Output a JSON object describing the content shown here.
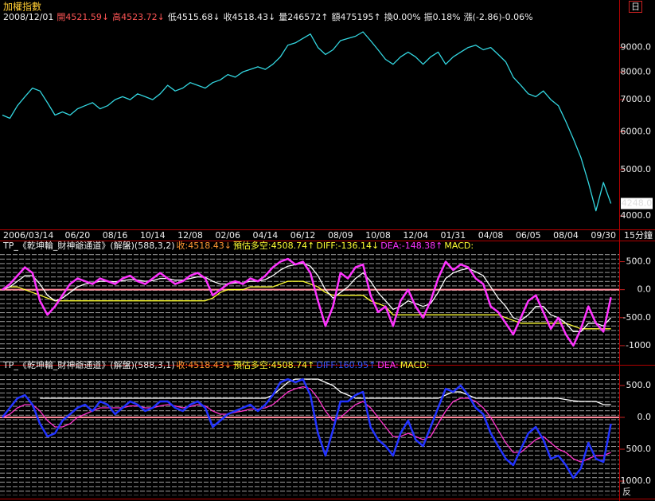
{
  "chart_data": [
    {
      "type": "line",
      "title": "加權指數",
      "info": [
        "2008/12/01",
        "開4521.59↓",
        "高4523.72↓",
        "低4515.68↓",
        "收4518.43↓",
        "量246572↑",
        "額475195↑",
        "換0.00%",
        "振0.18%",
        "漲(-2.86)-0.06%"
      ],
      "corner_label": "日",
      "categories": [
        "2006/03/14",
        null,
        null,
        null,
        null,
        null,
        null,
        null,
        null,
        null,
        "06/20",
        null,
        null,
        null,
        null,
        "08/16",
        null,
        null,
        null,
        null,
        "10/14",
        null,
        null,
        null,
        null,
        "12/08",
        null,
        null,
        null,
        null,
        "02/06",
        null,
        null,
        null,
        null,
        "04/14",
        null,
        null,
        null,
        null,
        "06/12",
        null,
        null,
        null,
        null,
        "08/09",
        null,
        null,
        null,
        null,
        "10/08",
        null,
        null,
        null,
        null,
        "12/04",
        null,
        null,
        null,
        null,
        "01/31",
        null,
        null,
        null,
        null,
        "04/08",
        null,
        null,
        null,
        null,
        "06/05",
        null,
        null,
        null,
        null,
        "08/04",
        null,
        null,
        null,
        null,
        "09/30",
        null
      ],
      "x_unit_label": "15分鐘",
      "values": [
        6500,
        6400,
        6800,
        7100,
        7400,
        7300,
        6900,
        6500,
        6600,
        6500,
        6700,
        6800,
        6900,
        6700,
        6800,
        7000,
        7100,
        7000,
        7200,
        7100,
        7000,
        7200,
        7500,
        7300,
        7400,
        7600,
        7500,
        7400,
        7600,
        7700,
        7900,
        7800,
        8000,
        8100,
        8200,
        8100,
        8300,
        8600,
        9100,
        9200,
        9400,
        9600,
        9000,
        8700,
        8900,
        9300,
        9400,
        9500,
        9700,
        9300,
        8900,
        8500,
        8300,
        8600,
        8800,
        8600,
        8300,
        8600,
        8800,
        8300,
        8600,
        8800,
        9000,
        9100,
        8900,
        9000,
        8700,
        8400,
        7800,
        7500,
        7200,
        7100,
        7300,
        7000,
        6800,
        6300,
        5800,
        5300,
        4700,
        4100,
        4700,
        4248
      ],
      "color": "#33d6e0",
      "last_value_label": "4248.0",
      "log_scale": true,
      "ylim": [
        3750,
        10800
      ],
      "yticks": [
        {
          "value": 4000,
          "label": "4000.0"
        },
        {
          "value": 5000,
          "label": "5000.0"
        },
        {
          "value": 6000,
          "label": "6000.0"
        },
        {
          "value": 7000,
          "label": "7000.0"
        },
        {
          "value": 8000,
          "label": "8000.0"
        },
        {
          "value": 9000,
          "label": "9000.0"
        }
      ]
    },
    {
      "type": "line",
      "legend": [
        "TP_《乾坤輪_財神爺通道》(解盤)(588,3,2)",
        "收:4518.43↓",
        "預估多空:4508.74↑",
        "DIFF:-136.14↓",
        "DEA:-148.38↑",
        "MACD:"
      ],
      "reference_line": 0,
      "series": [
        {
          "color": "#ffff33",
          "values": [
            0,
            50,
            50,
            0,
            -50,
            -100,
            -150,
            -200,
            -200,
            -200,
            -200,
            -200,
            -200,
            -200,
            -200,
            -200,
            -200,
            -200,
            -200,
            -200,
            -200,
            -200,
            -200,
            -200,
            -200,
            -200,
            -200,
            -200,
            -150,
            -50,
            0,
            0,
            0,
            50,
            50,
            50,
            50,
            100,
            150,
            150,
            150,
            100,
            50,
            -50,
            -100,
            -100,
            -100,
            -100,
            -100,
            -200,
            -250,
            -300,
            -450,
            -450,
            -450,
            -450,
            -450,
            -450,
            -450,
            -450,
            -450,
            -450,
            -450,
            -450,
            -450,
            -450,
            -450,
            -500,
            -550,
            -600,
            -600,
            -600,
            -600,
            -600,
            -600,
            -600,
            -650,
            -700,
            -700,
            -700,
            -700,
            -700
          ]
        },
        {
          "color": "#ffffff",
          "values": [
            0,
            50,
            150,
            250,
            250,
            100,
            -100,
            -200,
            -150,
            -50,
            50,
            100,
            120,
            150,
            150,
            140,
            160,
            180,
            170,
            150,
            160,
            200,
            200,
            170,
            170,
            200,
            230,
            220,
            150,
            100,
            100,
            120,
            120,
            150,
            150,
            180,
            250,
            350,
            420,
            450,
            470,
            420,
            250,
            0,
            -150,
            -50,
            50,
            200,
            300,
            150,
            -50,
            -200,
            -350,
            -300,
            -200,
            -250,
            -300,
            -250,
            -50,
            200,
            300,
            350,
            380,
            320,
            250,
            50,
            -150,
            -300,
            -500,
            -550,
            -450,
            -300,
            -300,
            -450,
            -500,
            -600,
            -750,
            -750,
            -600,
            -600,
            -650,
            -500
          ]
        },
        {
          "color": "#ff33ff",
          "values": [
            0,
            100,
            250,
            400,
            300,
            -200,
            -450,
            -300,
            -100,
            100,
            200,
            150,
            100,
            200,
            150,
            100,
            200,
            250,
            150,
            100,
            200,
            300,
            200,
            100,
            150,
            250,
            300,
            200,
            -100,
            0,
            100,
            150,
            100,
            200,
            150,
            250,
            400,
            500,
            550,
            450,
            500,
            300,
            -200,
            -650,
            -300,
            300,
            200,
            400,
            450,
            -100,
            -400,
            -300,
            -650,
            -200,
            0,
            -300,
            -500,
            -200,
            200,
            500,
            350,
            450,
            400,
            200,
            100,
            -300,
            -400,
            -600,
            -800,
            -500,
            -200,
            -100,
            -400,
            -700,
            -500,
            -800,
            -1000,
            -700,
            -300,
            -600,
            -750,
            -136
          ]
        }
      ],
      "ylim": [
        -1300,
        650
      ],
      "yticks": [
        {
          "value": -1000,
          "label": "-1000"
        },
        {
          "value": -500,
          "label": "-500.0"
        },
        {
          "value": 0,
          "label": "0.0"
        },
        {
          "value": 500,
          "label": "500.0"
        }
      ]
    },
    {
      "type": "line",
      "legend": [
        "TP_《乾坤輪_財神爺通道》(解盤)(588,3,1)",
        "收:4518.43↓",
        "預估多空:4508.74↑",
        "DIFF:160.95↑",
        "DEA:",
        "MACD:"
      ],
      "corner_label": "反",
      "reference_line": 0,
      "series": [
        {
          "color": "#ffffff",
          "values": [
            null,
            null,
            null,
            null,
            null,
            300,
            300,
            300,
            300,
            300,
            300,
            300,
            300,
            300,
            300,
            300,
            300,
            300,
            300,
            300,
            300,
            300,
            300,
            300,
            300,
            300,
            300,
            300,
            300,
            300,
            300,
            300,
            300,
            300,
            300,
            300,
            350,
            450,
            550,
            600,
            600,
            600,
            600,
            550,
            500,
            400,
            350,
            300,
            300,
            300,
            300,
            300,
            300,
            300,
            300,
            300,
            300,
            300,
            300,
            350,
            400,
            400,
            350,
            300,
            300,
            300,
            300,
            300,
            300,
            300,
            300,
            300,
            300,
            300,
            300,
            280,
            260,
            250,
            250,
            250,
            200,
            200
          ]
        },
        {
          "color": "#ff33cc",
          "values": [
            0,
            50,
            150,
            200,
            200,
            100,
            -50,
            -150,
            -150,
            -100,
            0,
            50,
            100,
            150,
            150,
            150,
            150,
            180,
            180,
            150,
            150,
            180,
            200,
            180,
            150,
            170,
            200,
            180,
            100,
            50,
            50,
            80,
            100,
            130,
            130,
            150,
            200,
            300,
            400,
            450,
            480,
            450,
            300,
            100,
            -50,
            0,
            100,
            200,
            250,
            150,
            0,
            -150,
            -300,
            -300,
            -250,
            -300,
            -350,
            -300,
            -100,
            100,
            250,
            300,
            300,
            250,
            150,
            0,
            -200,
            -400,
            -550,
            -550,
            -450,
            -350,
            -300,
            -400,
            -500,
            -550,
            -650,
            -700,
            -650,
            -600,
            -600,
            -550
          ]
        },
        {
          "color": "#2233ff",
          "values": [
            0,
            150,
            300,
            350,
            200,
            -100,
            -300,
            -250,
            -50,
            50,
            150,
            200,
            100,
            250,
            200,
            50,
            150,
            250,
            200,
            100,
            150,
            250,
            250,
            150,
            100,
            200,
            250,
            150,
            -150,
            -50,
            50,
            100,
            150,
            200,
            100,
            200,
            350,
            550,
            600,
            550,
            600,
            350,
            -250,
            -600,
            -200,
            250,
            250,
            350,
            400,
            -150,
            -350,
            -450,
            -600,
            -250,
            -50,
            -350,
            -450,
            -150,
            150,
            450,
            400,
            500,
            350,
            150,
            50,
            -250,
            -450,
            -650,
            -750,
            -500,
            -250,
            -150,
            -350,
            -650,
            -600,
            -750,
            -950,
            -800,
            -400,
            -650,
            -700,
            -100
          ]
        }
      ],
      "ylim": [
        -1200,
        700
      ],
      "yticks": [
        {
          "value": -1000,
          "label": "1000.0"
        },
        {
          "value": -500,
          "label": "500.0"
        },
        {
          "value": 0,
          "label": "0.0"
        },
        {
          "value": 500,
          "label": "500.0"
        }
      ]
    }
  ]
}
